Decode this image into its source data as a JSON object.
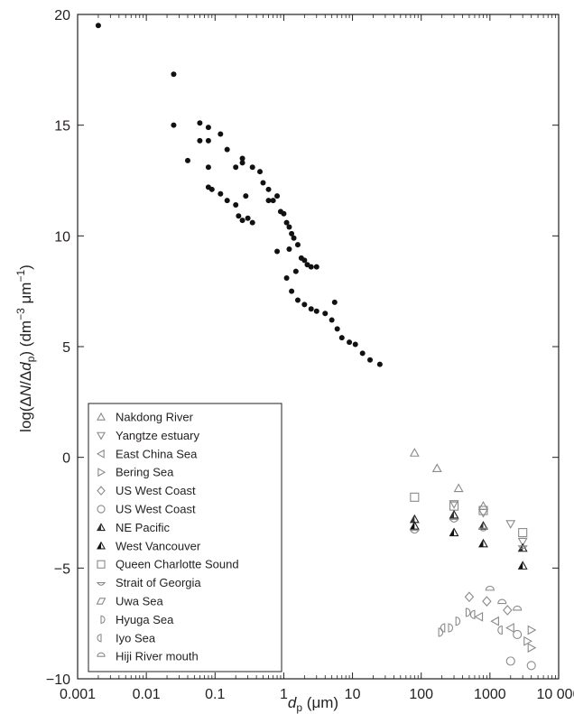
{
  "chart_data": {
    "type": "scatter",
    "x_scale": "log",
    "xlim": [
      0.001,
      10000
    ],
    "ylim": [
      -10,
      20
    ],
    "x_ticks": [
      {
        "value": 0.001,
        "label": "0.001"
      },
      {
        "value": 0.01,
        "label": "0.01"
      },
      {
        "value": 0.1,
        "label": "0.1"
      },
      {
        "value": 1,
        "label": "1"
      },
      {
        "value": 10,
        "label": "10"
      },
      {
        "value": 100,
        "label": "100"
      },
      {
        "value": 1000,
        "label": "1000"
      },
      {
        "value": 10000,
        "label": "10 000"
      }
    ],
    "y_ticks": [
      {
        "value": -10,
        "label": "−10"
      },
      {
        "value": -5,
        "label": "−5"
      },
      {
        "value": 0,
        "label": "0"
      },
      {
        "value": 5,
        "label": "5"
      },
      {
        "value": 10,
        "label": "10"
      },
      {
        "value": 15,
        "label": "15"
      },
      {
        "value": 20,
        "label": "20"
      }
    ],
    "xlabel": {
      "main": "d",
      "sub": "p",
      "unit": " (μm)"
    },
    "ylabel": {
      "pre": "log(Δ",
      "N": "N",
      "slash": "/Δ",
      "d": "d",
      "sub": "p",
      "mid": ") (dm",
      "exp1": "−3",
      "um": " μm",
      "exp2": "−1",
      "post": ")"
    },
    "grid": false,
    "legend_position": "lower-left",
    "legend": [
      {
        "label": "Nakdong River",
        "marker": "triangle-up"
      },
      {
        "label": "Yangtze estuary",
        "marker": "triangle-down"
      },
      {
        "label": "East China Sea",
        "marker": "triangle-left"
      },
      {
        "label": "Bering Sea",
        "marker": "triangle-right"
      },
      {
        "label": "US West Coast",
        "marker": "diamond"
      },
      {
        "label": "US West Coast",
        "marker": "circle"
      },
      {
        "label": "NE Pacific",
        "marker": "triangle-up-half"
      },
      {
        "label": "West Vancouver",
        "marker": "triangle-up-half-dark"
      },
      {
        "label": "Queen Charlotte Sound",
        "marker": "square"
      },
      {
        "label": "Strait of Georgia",
        "marker": "lens"
      },
      {
        "label": "Uwa Sea",
        "marker": "parallelogram"
      },
      {
        "label": "Hyuga Sea",
        "marker": "half-circle-right"
      },
      {
        "label": "Iyo Sea",
        "marker": "half-circle-left"
      },
      {
        "label": "Hiji River mouth",
        "marker": "half-circle-top"
      }
    ],
    "series": [
      {
        "marker": "filled-circle",
        "points": [
          [
            0.002,
            19.5
          ],
          [
            0.025,
            17.3
          ],
          [
            0.025,
            15.0
          ],
          [
            0.04,
            13.4
          ],
          [
            0.06,
            15.1
          ],
          [
            0.06,
            14.3
          ],
          [
            0.08,
            14.9
          ],
          [
            0.08,
            14.3
          ],
          [
            0.08,
            13.1
          ],
          [
            0.08,
            12.2
          ],
          [
            0.09,
            12.1
          ],
          [
            0.12,
            14.6
          ],
          [
            0.12,
            11.9
          ],
          [
            0.15,
            13.9
          ],
          [
            0.15,
            11.6
          ],
          [
            0.2,
            13.1
          ],
          [
            0.2,
            11.4
          ],
          [
            0.22,
            10.9
          ],
          [
            0.25,
            13.5
          ],
          [
            0.25,
            13.3
          ],
          [
            0.25,
            10.7
          ],
          [
            0.28,
            11.8
          ],
          [
            0.3,
            10.8
          ],
          [
            0.35,
            13.1
          ],
          [
            0.35,
            10.6
          ],
          [
            0.45,
            12.9
          ],
          [
            0.5,
            12.4
          ],
          [
            0.6,
            12.1
          ],
          [
            0.6,
            11.6
          ],
          [
            0.7,
            11.6
          ],
          [
            0.8,
            11.8
          ],
          [
            0.9,
            11.1
          ],
          [
            1.0,
            11.0
          ],
          [
            1.1,
            10.6
          ],
          [
            1.2,
            10.4
          ],
          [
            1.3,
            10.1
          ],
          [
            1.4,
            9.9
          ],
          [
            1.6,
            9.6
          ],
          [
            1.8,
            9.0
          ],
          [
            2.0,
            8.9
          ],
          [
            2.2,
            8.7
          ],
          [
            2.5,
            8.6
          ],
          [
            3.0,
            8.6
          ],
          [
            0.8,
            9.3
          ],
          [
            1.1,
            8.1
          ],
          [
            1.3,
            7.5
          ],
          [
            1.6,
            7.1
          ],
          [
            2.0,
            6.9
          ],
          [
            2.5,
            6.7
          ],
          [
            3.0,
            6.6
          ],
          [
            4.0,
            6.5
          ],
          [
            5.0,
            6.2
          ],
          [
            6.0,
            5.8
          ],
          [
            7.0,
            5.4
          ],
          [
            9.0,
            5.2
          ],
          [
            11.0,
            5.1
          ],
          [
            14.0,
            4.7
          ],
          [
            18.0,
            4.4
          ],
          [
            25.0,
            4.2
          ],
          [
            5.5,
            7.0
          ],
          [
            1.2,
            9.4
          ],
          [
            1.5,
            8.4
          ]
        ]
      },
      {
        "marker": "triangle-up",
        "points": [
          [
            80,
            0.2
          ],
          [
            170,
            -0.5
          ],
          [
            350,
            -1.4
          ],
          [
            800,
            -2.2
          ]
        ]
      },
      {
        "marker": "triangle-down",
        "points": [
          [
            300,
            -2.1
          ],
          [
            800,
            -2.5
          ],
          [
            2000,
            -3.0
          ],
          [
            3000,
            -3.8
          ]
        ]
      },
      {
        "marker": "square",
        "points": [
          [
            80,
            -1.8
          ],
          [
            300,
            -2.2
          ],
          [
            800,
            -2.4
          ],
          [
            3000,
            -3.4
          ]
        ]
      },
      {
        "marker": "triangle-up-half",
        "points": [
          [
            80,
            -2.8
          ],
          [
            300,
            -2.6
          ],
          [
            800,
            -3.1
          ],
          [
            3000,
            -4.1
          ]
        ]
      },
      {
        "marker": "triangle-up-half-dark",
        "points": [
          [
            80,
            -3.1
          ],
          [
            300,
            -3.4
          ],
          [
            800,
            -3.9
          ],
          [
            3000,
            -4.9
          ]
        ]
      },
      {
        "marker": "lens",
        "points": [
          [
            80,
            -3.3
          ],
          [
            300,
            -2.8
          ],
          [
            800,
            -3.2
          ],
          [
            3000,
            -4.0
          ]
        ]
      },
      {
        "marker": "circle",
        "points": [
          [
            2000,
            -9.2
          ],
          [
            4000,
            -9.4
          ],
          [
            2500,
            -8.0
          ]
        ]
      },
      {
        "marker": "triangle-right",
        "points": [
          [
            4000,
            -8.6
          ],
          [
            3500,
            -8.3
          ],
          [
            4000,
            -7.8
          ]
        ]
      },
      {
        "marker": "triangle-left",
        "points": [
          [
            700,
            -7.2
          ],
          [
            1200,
            -7.4
          ],
          [
            2000,
            -7.7
          ]
        ]
      },
      {
        "marker": "half-circle-right",
        "points": [
          [
            180,
            -7.9
          ],
          [
            250,
            -7.7
          ],
          [
            320,
            -7.4
          ],
          [
            450,
            -7.0
          ]
        ]
      },
      {
        "marker": "half-circle-left",
        "points": [
          [
            220,
            -7.7
          ],
          [
            600,
            -7.1
          ],
          [
            1500,
            -7.8
          ]
        ]
      },
      {
        "marker": "half-circle-top",
        "points": [
          [
            1000,
            -6.0
          ],
          [
            1500,
            -6.6
          ],
          [
            2500,
            -6.9
          ]
        ]
      },
      {
        "marker": "diamond",
        "points": [
          [
            500,
            -6.3
          ],
          [
            900,
            -6.5
          ],
          [
            1800,
            -6.9
          ]
        ]
      }
    ]
  }
}
